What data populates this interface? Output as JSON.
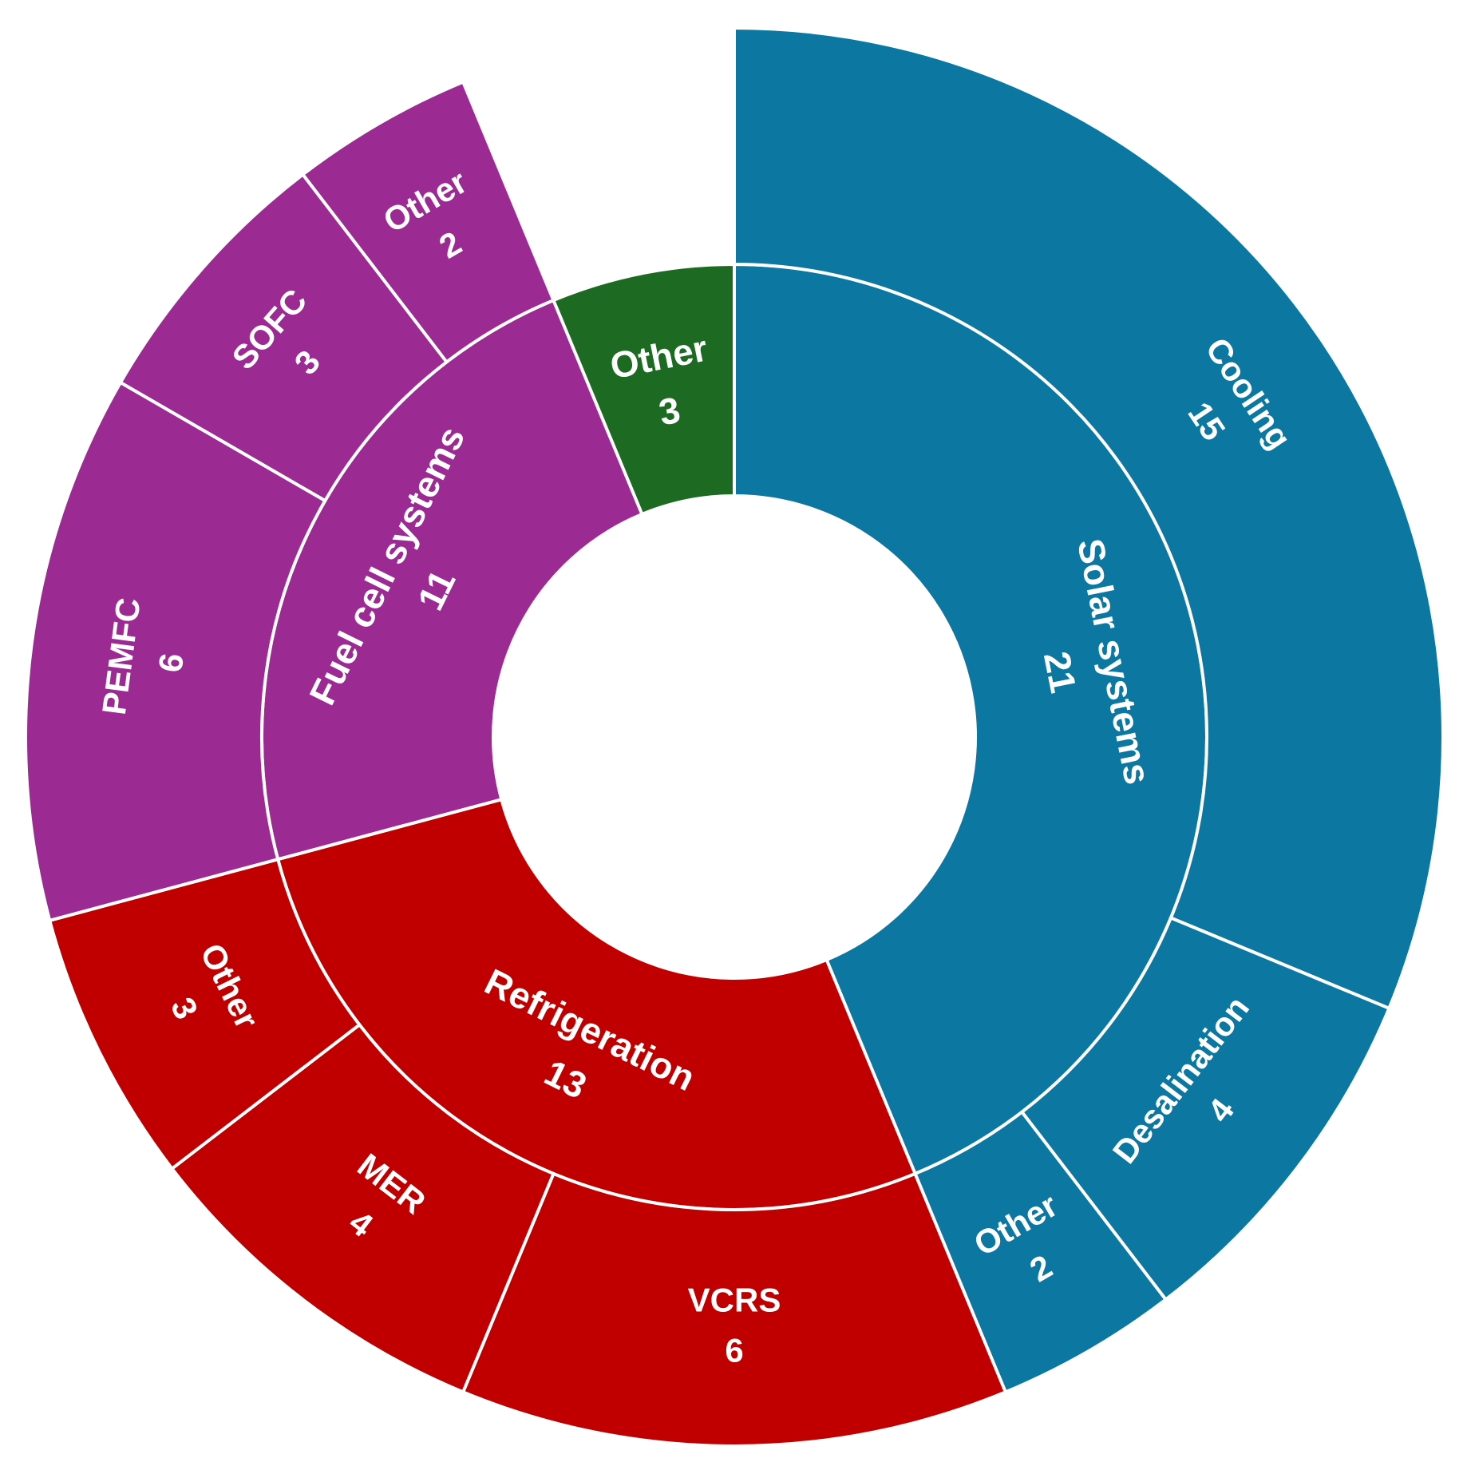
{
  "chart_data": {
    "type": "sunburst",
    "nodes": [
      {
        "name": "Solar systems",
        "value": 21,
        "color": "#0c77a0",
        "children": [
          {
            "name": "Cooling",
            "value": 15
          },
          {
            "name": "Desalination",
            "value": 4
          },
          {
            "name": "Other",
            "value": 2
          }
        ]
      },
      {
        "name": "Refrigeration",
        "value": 13,
        "color": "#c00000",
        "children": [
          {
            "name": "VCRS",
            "value": 6
          },
          {
            "name": "MER",
            "value": 4
          },
          {
            "name": "Other",
            "value": 3
          }
        ]
      },
      {
        "name": "Fuel cell systems",
        "value": 11,
        "color": "#9c2a93",
        "children": [
          {
            "name": "PEMFC",
            "value": 6
          },
          {
            "name": "SOFC",
            "value": 3
          },
          {
            "name": "Other",
            "value": 2
          }
        ]
      },
      {
        "name": "Other",
        "value": 3,
        "color": "#1d6b23",
        "children": []
      }
    ]
  }
}
